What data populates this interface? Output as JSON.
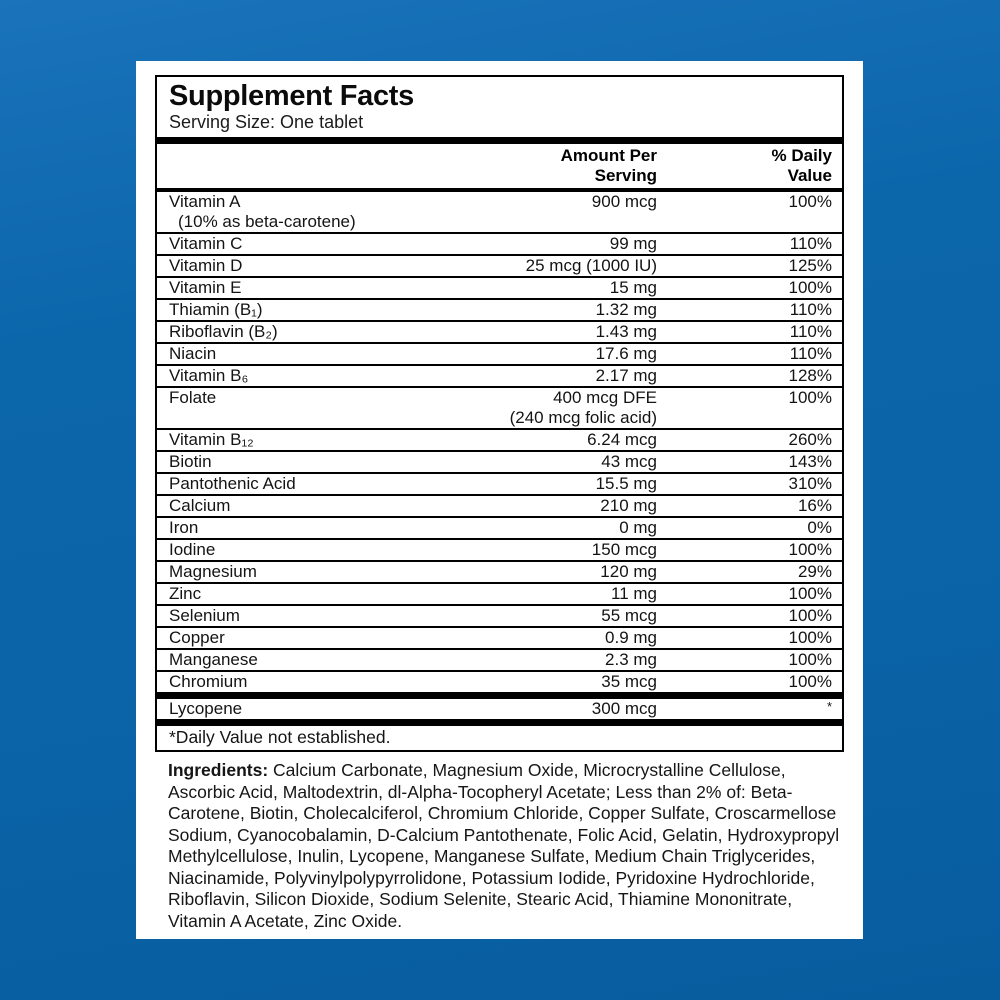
{
  "colors": {
    "background_blue": "#0b65aa",
    "panel_white": "#ffffff",
    "rule_black": "#000000"
  },
  "label": {
    "title": "Supplement Facts",
    "serving_size": "Serving Size: One tablet"
  },
  "table": {
    "header_amount": "Amount Per\nServing",
    "header_dv": "% Daily\nValue",
    "rows": [
      {
        "name": "Vitamin A",
        "name2": "(10% as beta-carotene)",
        "amount": "900 mcg",
        "dv": "100%"
      },
      {
        "name": "Vitamin C",
        "amount": "99 mg",
        "dv": "110%"
      },
      {
        "name": "Vitamin D",
        "amount": "25 mcg (1000 IU)",
        "dv": "125%"
      },
      {
        "name": "Vitamin E",
        "amount": "15 mg",
        "dv": "100%"
      },
      {
        "name": "Thiamin (B₁)",
        "amount": "1.32 mg",
        "dv": "110%"
      },
      {
        "name": "Riboflavin (B₂)",
        "amount": "1.43 mg",
        "dv": "110%"
      },
      {
        "name": "Niacin",
        "amount": "17.6 mg",
        "dv": "110%"
      },
      {
        "name": "Vitamin B₆",
        "amount": "2.17 mg",
        "dv": "128%"
      },
      {
        "name": "Folate",
        "amount": "400 mcg DFE",
        "amount2": "(240 mcg folic acid)",
        "dv": "100%"
      },
      {
        "name": "Vitamin B₁₂",
        "amount": "6.24 mcg",
        "dv": "260%"
      },
      {
        "name": "Biotin",
        "amount": "43 mcg",
        "dv": "143%"
      },
      {
        "name": "Pantothenic Acid",
        "amount": "15.5 mg",
        "dv": "310%"
      },
      {
        "name": "Calcium",
        "amount": "210 mg",
        "dv": "16%"
      },
      {
        "name": "Iron",
        "amount": "0 mg",
        "dv": "0%"
      },
      {
        "name": "Iodine",
        "amount": "150 mcg",
        "dv": "100%"
      },
      {
        "name": "Magnesium",
        "amount": "120 mg",
        "dv": "29%"
      },
      {
        "name": "Zinc",
        "amount": "11 mg",
        "dv": "100%"
      },
      {
        "name": "Selenium",
        "amount": "55 mcg",
        "dv": "100%"
      },
      {
        "name": "Copper",
        "amount": "0.9 mg",
        "dv": "100%"
      },
      {
        "name": "Manganese",
        "amount": "2.3 mg",
        "dv": "100%"
      },
      {
        "name": "Chromium",
        "amount": "35 mcg",
        "dv": "100%"
      }
    ],
    "other_row": {
      "name": "Lycopene",
      "amount": "300 mcg",
      "dv": "*"
    },
    "footnote": "*Daily Value not established."
  },
  "ingredients": {
    "label": "Ingredients:",
    "text": " Calcium Carbonate, Magnesium Oxide, Microcrystalline Cellulose, Ascorbic Acid, Maltodextrin, dl-Alpha-Tocopheryl Acetate; Less than 2% of: Beta-Carotene, Biotin, Cholecalciferol, Chromium Chloride, Copper Sulfate, Croscarmellose Sodium, Cyanocobalamin, D-Calcium Pantothenate, Folic Acid, Gelatin, Hydroxypropyl Methylcellulose, Inulin, Lycopene, Manganese Sulfate, Medium Chain Triglycerides, Niacinamide, Polyvinylpolypyrrolidone, Potassium Iodide, Pyridoxine Hydrochloride, Riboflavin, Silicon Dioxide, Sodium Selenite, Stearic Acid, Thiamine Mononitrate, Vitamin A Acetate, Zinc Oxide."
  }
}
